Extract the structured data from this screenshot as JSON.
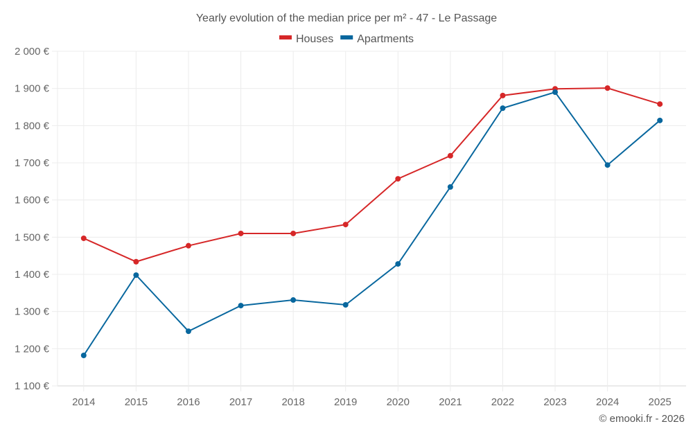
{
  "chart_data": {
    "type": "line",
    "title": "Yearly evolution of the median price per m² - 47 - Le Passage",
    "xlabel": "",
    "ylabel": "",
    "categories": [
      "2014",
      "2015",
      "2016",
      "2017",
      "2018",
      "2019",
      "2020",
      "2021",
      "2022",
      "2023",
      "2024",
      "2025"
    ],
    "series": [
      {
        "name": "Houses",
        "color": "#d62728",
        "values": [
          1497,
          1434,
          1477,
          1510,
          1510,
          1534,
          1657,
          1719,
          1881,
          1899,
          1901,
          1858
        ]
      },
      {
        "name": "Apartments",
        "color": "#08679e",
        "values": [
          1182,
          1398,
          1247,
          1316,
          1331,
          1318,
          1428,
          1635,
          1847,
          1890,
          1694,
          1814
        ]
      }
    ],
    "ylim": [
      1100,
      2000
    ],
    "yticks": [
      1100,
      1200,
      1300,
      1400,
      1500,
      1600,
      1700,
      1800,
      1900,
      2000
    ],
    "ytick_labels": [
      "1 100 €",
      "1 200 €",
      "1 300 €",
      "1 400 €",
      "1 500 €",
      "1 600 €",
      "1 700 €",
      "1 800 €",
      "1 900 €",
      "2 000 €"
    ],
    "grid": true,
    "legend_position": "top-center"
  },
  "credit": "© emooki.fr - 2026"
}
